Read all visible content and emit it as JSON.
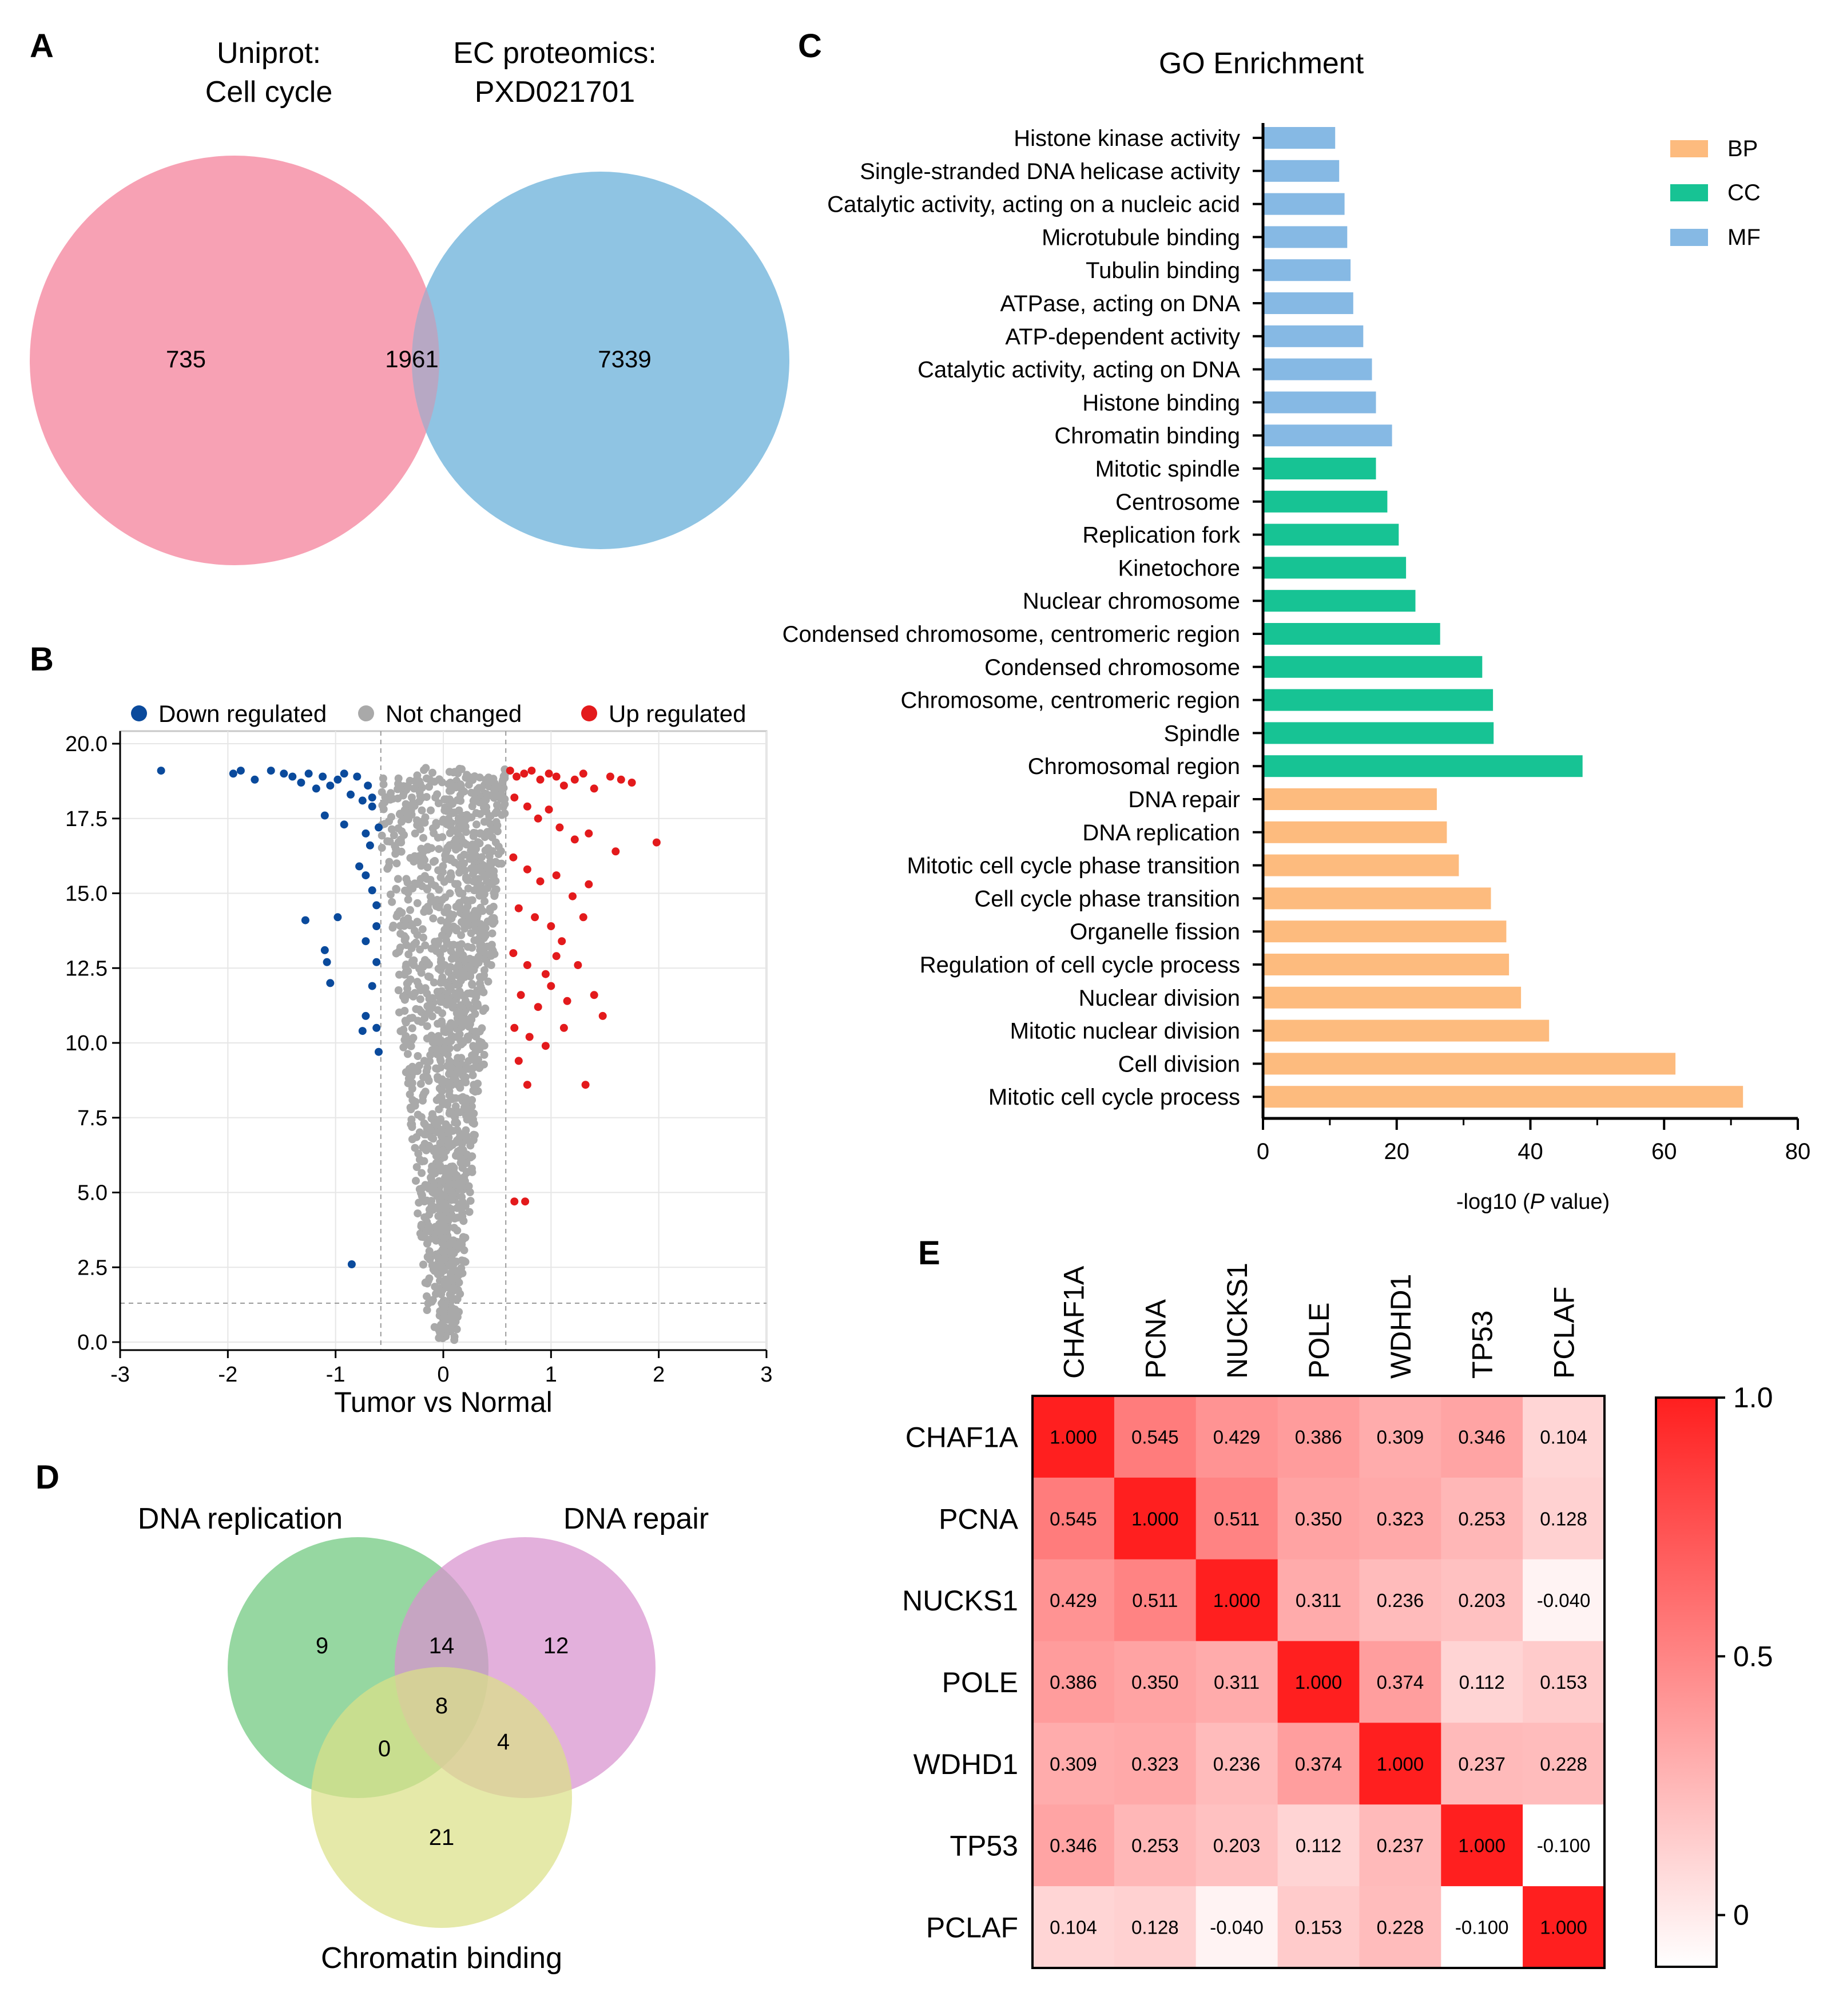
{
  "panels": {
    "a": {
      "letter": "A"
    },
    "b": {
      "letter": "B"
    },
    "c": {
      "letter": "C"
    },
    "d": {
      "letter": "D"
    },
    "e": {
      "letter": "E"
    }
  },
  "colors": {
    "venn_left": "#f7a1b4",
    "venn_right": "#8fc4e3",
    "venn_overlap": "#b7a8c4",
    "down": "#0a4a9c",
    "not_changed": "#a9a9a9",
    "up": "#e31a1c",
    "bp": "#fdbb7e",
    "cc": "#17c394",
    "mf": "#86b9e4",
    "d_green": "#79cc87",
    "d_pink": "#d891cf",
    "d_yellow": "#dbe088",
    "heat_max": "#ff1f1f"
  },
  "chart_data": [
    {
      "type": "venn",
      "id": "A",
      "sets": [
        {
          "name_line1": "Uniprot:",
          "name_line2": "Cell cycle",
          "only": 735
        },
        {
          "name_line1": "EC proteomics:",
          "name_line2": "PXD021701",
          "only": 7339
        }
      ],
      "intersection": 1961
    },
    {
      "type": "scatter",
      "id": "B",
      "xlabel": "Tumor vs Normal",
      "ylabel": "",
      "xlim": [
        -3,
        3
      ],
      "ylim": [
        0,
        20
      ],
      "xticks": [
        "-3",
        "-2",
        "-1",
        "0",
        "1",
        "2",
        "3"
      ],
      "yticks": [
        "0.0",
        "2.5",
        "5.0",
        "7.5",
        "10.0",
        "12.5",
        "15.0",
        "17.5",
        "20.0"
      ],
      "thresholds": {
        "x": [
          -0.58,
          0.58
        ],
        "y": 1.3
      },
      "legend": [
        "Down regulated",
        "Not changed",
        "Up regulated"
      ],
      "series": [
        {
          "name": "Down regulated",
          "points": [
            [
              -2.62,
              19.1
            ],
            [
              -1.95,
              19.0
            ],
            [
              -1.88,
              19.1
            ],
            [
              -1.75,
              18.8
            ],
            [
              -1.6,
              19.1
            ],
            [
              -1.48,
              19.0
            ],
            [
              -1.4,
              18.9
            ],
            [
              -1.32,
              18.7
            ],
            [
              -1.25,
              19.0
            ],
            [
              -1.18,
              18.5
            ],
            [
              -1.12,
              18.9
            ],
            [
              -1.05,
              18.6
            ],
            [
              -0.98,
              18.8
            ],
            [
              -0.92,
              19.0
            ],
            [
              -0.86,
              18.3
            ],
            [
              -0.8,
              18.9
            ],
            [
              -0.75,
              18.1
            ],
            [
              -0.7,
              18.6
            ],
            [
              -0.66,
              17.9
            ],
            [
              -1.1,
              17.6
            ],
            [
              -0.92,
              17.3
            ],
            [
              -0.72,
              17.0
            ],
            [
              -0.68,
              16.6
            ],
            [
              -0.78,
              15.9
            ],
            [
              -0.72,
              15.6
            ],
            [
              -0.66,
              15.1
            ],
            [
              -0.62,
              14.6
            ],
            [
              -1.28,
              14.1
            ],
            [
              -0.98,
              14.2
            ],
            [
              -0.62,
              13.9
            ],
            [
              -1.1,
              13.1
            ],
            [
              -0.72,
              13.4
            ],
            [
              -1.08,
              12.7
            ],
            [
              -0.62,
              12.7
            ],
            [
              -1.05,
              12.0
            ],
            [
              -0.66,
              11.9
            ],
            [
              -0.72,
              10.9
            ],
            [
              -0.62,
              10.5
            ],
            [
              -0.75,
              10.4
            ],
            [
              -0.6,
              9.7
            ],
            [
              -0.85,
              2.6
            ],
            [
              -0.66,
              18.2
            ],
            [
              -0.6,
              17.2
            ]
          ]
        },
        {
          "name": "Up regulated",
          "points": [
            [
              0.62,
              19.1
            ],
            [
              0.68,
              18.9
            ],
            [
              0.75,
              19.0
            ],
            [
              0.82,
              19.1
            ],
            [
              0.9,
              18.8
            ],
            [
              0.98,
              19.0
            ],
            [
              1.05,
              18.9
            ],
            [
              1.12,
              18.6
            ],
            [
              1.22,
              18.8
            ],
            [
              1.3,
              19.0
            ],
            [
              1.4,
              18.5
            ],
            [
              1.55,
              18.9
            ],
            [
              1.65,
              18.8
            ],
            [
              1.75,
              18.7
            ],
            [
              0.66,
              18.2
            ],
            [
              0.78,
              17.9
            ],
            [
              0.88,
              17.5
            ],
            [
              0.98,
              17.8
            ],
            [
              1.08,
              17.2
            ],
            [
              1.22,
              16.8
            ],
            [
              1.35,
              17.0
            ],
            [
              1.6,
              16.4
            ],
            [
              1.98,
              16.7
            ],
            [
              0.65,
              16.2
            ],
            [
              0.78,
              15.8
            ],
            [
              0.9,
              15.4
            ],
            [
              1.05,
              15.6
            ],
            [
              1.2,
              14.9
            ],
            [
              1.35,
              15.3
            ],
            [
              0.7,
              14.5
            ],
            [
              0.85,
              14.2
            ],
            [
              1.0,
              13.9
            ],
            [
              1.3,
              14.2
            ],
            [
              1.1,
              13.4
            ],
            [
              0.65,
              13.0
            ],
            [
              0.78,
              12.6
            ],
            [
              0.95,
              12.3
            ],
            [
              1.05,
              12.9
            ],
            [
              1.25,
              12.6
            ],
            [
              0.72,
              11.6
            ],
            [
              0.88,
              11.2
            ],
            [
              1.0,
              11.9
            ],
            [
              1.15,
              11.4
            ],
            [
              1.4,
              11.6
            ],
            [
              1.48,
              10.9
            ],
            [
              0.66,
              10.5
            ],
            [
              0.8,
              10.2
            ],
            [
              0.95,
              9.9
            ],
            [
              1.12,
              10.5
            ],
            [
              0.7,
              9.4
            ],
            [
              0.78,
              8.6
            ],
            [
              1.32,
              8.6
            ],
            [
              0.66,
              4.7
            ],
            [
              0.76,
              4.7
            ]
          ]
        },
        {
          "name": "Not changed",
          "points": []
        }
      ]
    },
    {
      "type": "bar",
      "id": "C",
      "orientation": "horizontal",
      "title": "GO Enrichment",
      "xlabel_prefix": "-log10 (",
      "xlabel_italic": "P",
      "xlabel_suffix": " value)",
      "xlim": [
        0,
        80
      ],
      "xticks": [
        "0",
        "20",
        "40",
        "60",
        "80"
      ],
      "legend": [
        "BP",
        "CC",
        "MF"
      ],
      "categories": [
        "Histone kinase activity",
        "Single-stranded DNA helicase activity",
        "Catalytic activity, acting on a nucleic acid",
        "Microtubule binding",
        "Tubulin binding",
        "ATPase, acting on DNA",
        "ATP-dependent activity",
        "Catalytic activity, acting on DNA",
        "Histone binding",
        "Chromatin binding",
        "Mitotic spindle",
        "Centrosome",
        "Replication fork",
        "Kinetochore",
        "Nuclear chromosome",
        "Condensed chromosome, centromeric region",
        "Condensed chromosome",
        "Chromosome, centromeric region",
        "Spindle",
        "Chromosomal region",
        "DNA repair",
        "DNA replication",
        "Mitotic cell cycle phase transition",
        "Cell cycle phase transition",
        "Organelle fission",
        "Regulation of cell cycle process",
        "Nuclear division",
        "Mitotic nuclear division",
        "Cell division",
        "Mitotic cell cycle process"
      ],
      "values": [
        10.8,
        11.4,
        12.2,
        12.6,
        13.1,
        13.5,
        15.0,
        16.3,
        16.9,
        19.3,
        16.9,
        18.6,
        20.3,
        21.4,
        22.8,
        26.5,
        32.8,
        34.4,
        34.5,
        47.8,
        26.0,
        27.5,
        29.3,
        34.1,
        36.4,
        36.8,
        38.6,
        42.8,
        61.7,
        71.8
      ],
      "groups": [
        "MF",
        "MF",
        "MF",
        "MF",
        "MF",
        "MF",
        "MF",
        "MF",
        "MF",
        "MF",
        "CC",
        "CC",
        "CC",
        "CC",
        "CC",
        "CC",
        "CC",
        "CC",
        "CC",
        "CC",
        "BP",
        "BP",
        "BP",
        "BP",
        "BP",
        "BP",
        "BP",
        "BP",
        "BP",
        "BP"
      ]
    },
    {
      "type": "venn",
      "id": "D",
      "sets": [
        {
          "name": "DNA replication",
          "only": 9
        },
        {
          "name": "DNA repair",
          "only": 12
        },
        {
          "name": "Chromatin binding",
          "only": 21
        }
      ],
      "pairs": {
        "replication_repair": 14,
        "replication_chromatin": 0,
        "repair_chromatin": 4
      },
      "all_three": 8
    },
    {
      "type": "heatmap",
      "id": "E",
      "labels": [
        "CHAF1A",
        "PCNA",
        "NUCKS1",
        "POLE",
        "WDHD1",
        "TP53",
        "PCLAF"
      ],
      "matrix": [
        [
          "1.000",
          "0.545",
          "0.429",
          "0.386",
          "0.309",
          "0.346",
          "0.104"
        ],
        [
          "0.545",
          "1.000",
          "0.511",
          "0.350",
          "0.323",
          "0.253",
          "0.128"
        ],
        [
          "0.429",
          "0.511",
          "1.000",
          "0.311",
          "0.236",
          "0.203",
          "-0.040"
        ],
        [
          "0.386",
          "0.350",
          "0.311",
          "1.000",
          "0.374",
          "0.112",
          "0.153"
        ],
        [
          "0.309",
          "0.323",
          "0.236",
          "0.374",
          "1.000",
          "0.237",
          "0.228"
        ],
        [
          "0.346",
          "0.253",
          "0.203",
          "0.112",
          "0.237",
          "1.000",
          "-0.100"
        ],
        [
          "0.104",
          "0.128",
          "-0.040",
          "0.153",
          "0.228",
          "-0.100",
          "1.000"
        ]
      ],
      "colorbar": {
        "range": [
          -0.1,
          1.0
        ],
        "ticks": [
          "1.0",
          "0.5",
          "0"
        ]
      }
    }
  ]
}
